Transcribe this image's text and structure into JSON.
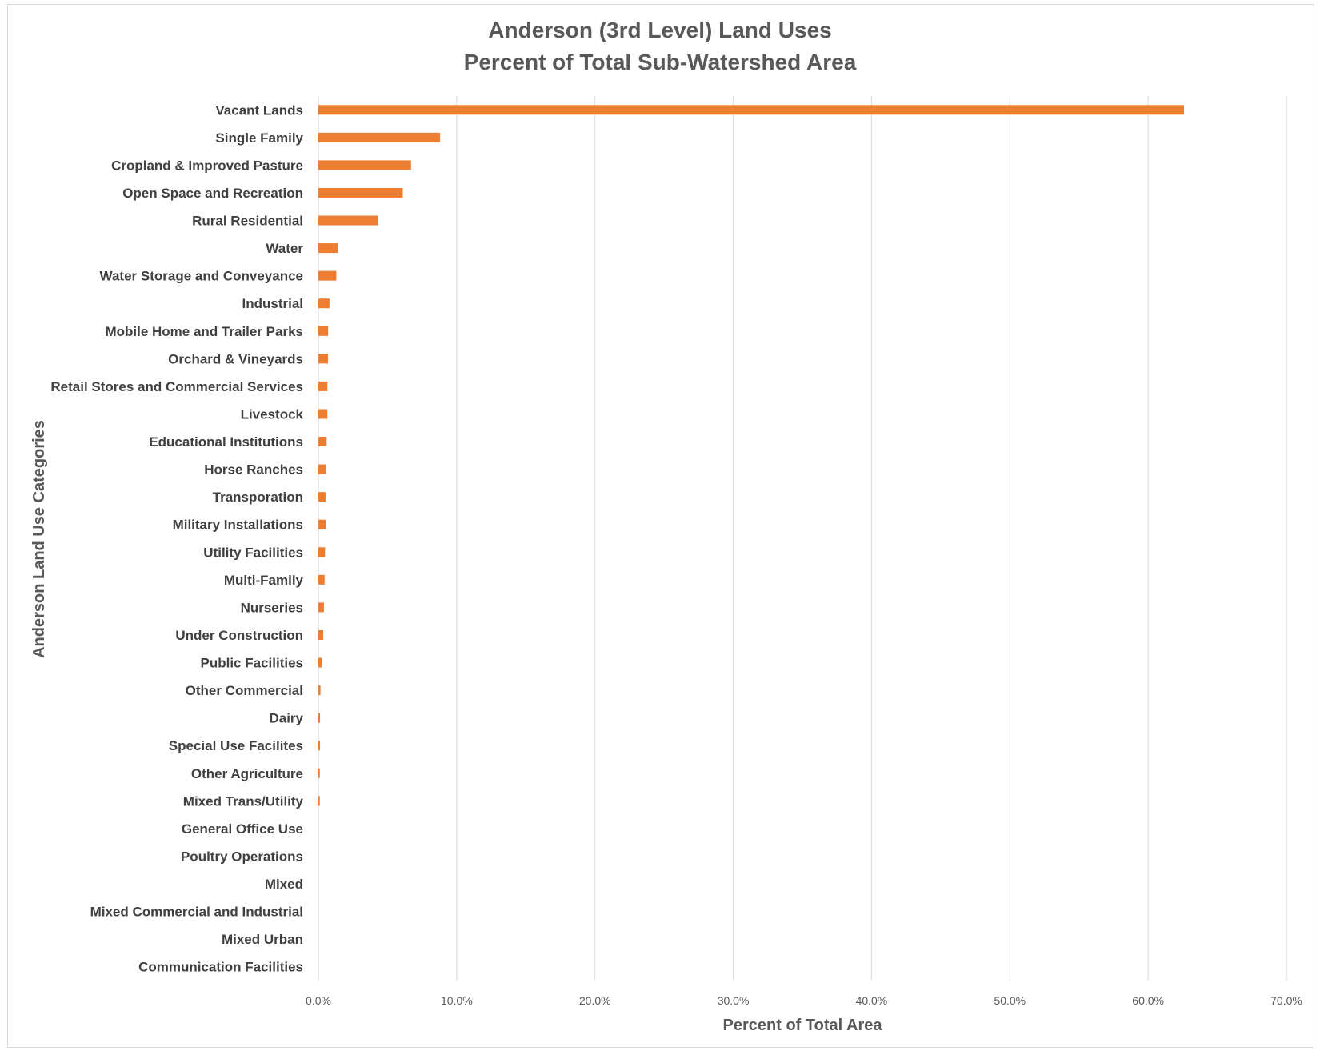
{
  "chart_data": {
    "type": "bar",
    "orientation": "horizontal",
    "title": "Anderson (3rd Level) Land Uses",
    "subtitle": "Percent of Total Sub-Watershed Area",
    "xlabel": "Percent of Total Area",
    "ylabel": "Anderson Land Use Categories",
    "xlim": [
      0,
      70
    ],
    "xticks": [
      "0.0%",
      "10.0%",
      "20.0%",
      "30.0%",
      "40.0%",
      "50.0%",
      "60.0%",
      "70.0%"
    ],
    "grid": "vertical",
    "bar_color": "#ed7d31",
    "categories": [
      "Vacant Lands",
      "Single Family",
      "Cropland & Improved Pasture",
      "Open Space and Recreation",
      "Rural Residential",
      "Water",
      "Water Storage and Conveyance",
      "Industrial",
      "Mobile Home and Trailer Parks",
      "Orchard & Vineyards",
      "Retail Stores and Commercial Services",
      "Livestock",
      "Educational Institutions",
      "Horse Ranches",
      "Transporation",
      "Military Installations",
      "Utility Facilities",
      "Multi-Family",
      "Nurseries",
      "Under Construction",
      "Public Facilities",
      "Other Commercial",
      "Dairy",
      "Special Use Facilites",
      "Other Agriculture",
      "Mixed Trans/Utility",
      "General Office Use",
      "Poultry Operations",
      "Mixed",
      "Mixed Commercial and Industrial",
      "Mixed Urban",
      "Communication Facilities"
    ],
    "values": [
      62.6,
      8.8,
      6.7,
      6.1,
      4.3,
      1.4,
      1.3,
      0.8,
      0.7,
      0.7,
      0.65,
      0.65,
      0.6,
      0.58,
      0.55,
      0.55,
      0.48,
      0.45,
      0.4,
      0.35,
      0.25,
      0.15,
      0.12,
      0.12,
      0.1,
      0.1,
      0,
      0,
      0,
      0,
      0,
      0
    ]
  }
}
